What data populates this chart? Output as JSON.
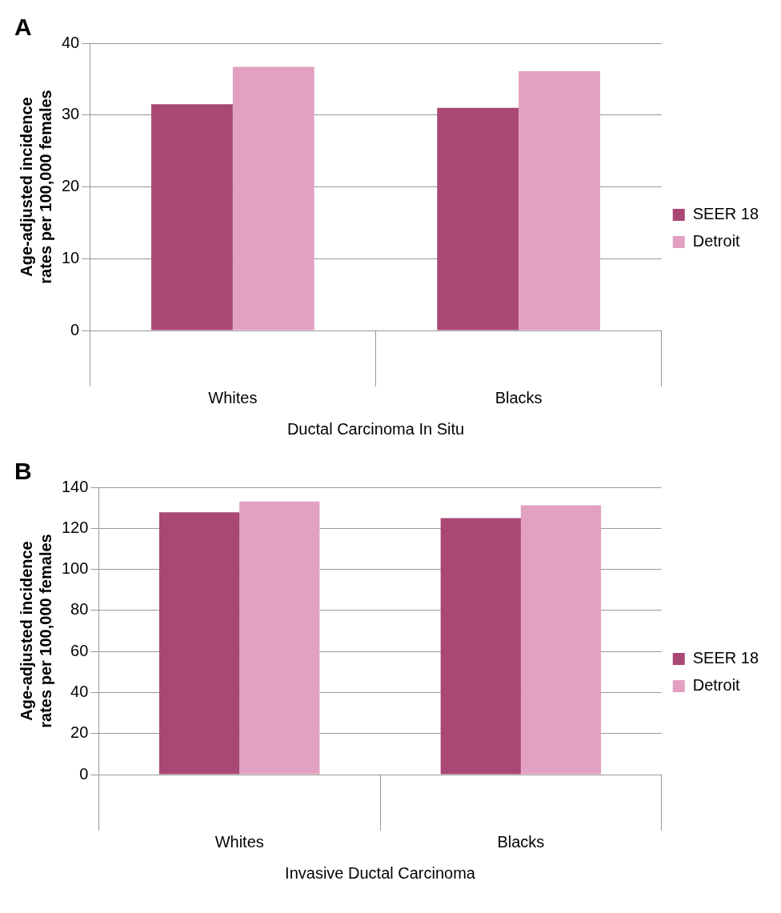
{
  "chart_data": [
    {
      "type": "bar",
      "title": "A",
      "ylabel": "Age-adjusted incidence rates per 100,000 females",
      "xlabel": "Ductal Carcinoma In Situ",
      "categories": [
        "Whites",
        "Blacks"
      ],
      "series": [
        {
          "name": "SEER 18",
          "color": "#a94874",
          "values": [
            31.5,
            31.0
          ]
        },
        {
          "name": "Detroit",
          "color": "#e2a1c1",
          "values": [
            36.7,
            36.1
          ]
        }
      ],
      "ylim": [
        0,
        40
      ],
      "yticks": [
        0,
        10,
        20,
        30,
        40
      ],
      "grid": "y",
      "legend": "right"
    },
    {
      "type": "bar",
      "title": "B",
      "ylabel": "Age-adjusted incidence rates per 100,000 females",
      "xlabel": "Invasive Ductal Carcinoma",
      "categories": [
        "Whites",
        "Blacks"
      ],
      "series": [
        {
          "name": "SEER 18",
          "color": "#a94874",
          "values": [
            127.8,
            125.0
          ]
        },
        {
          "name": "Detroit",
          "color": "#e2a1c1",
          "values": [
            133.1,
            131.2
          ]
        }
      ],
      "ylim": [
        0,
        140
      ],
      "yticks": [
        0,
        20,
        40,
        60,
        80,
        100,
        120,
        140
      ],
      "grid": "y",
      "legend": "right"
    }
  ]
}
